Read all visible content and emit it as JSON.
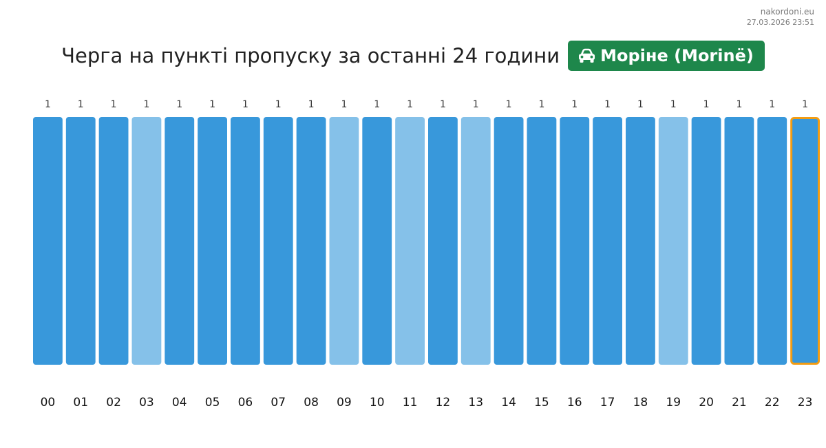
{
  "meta": {
    "site": "nakordoni.eu",
    "timestamp": "27.03.2026 23:51"
  },
  "header": {
    "title": "Черга на пункті пропуску за останні 24 години",
    "checkpoint": "Моріне (Morinë)",
    "checkpoint_icon": "car-icon",
    "badge_color": "#1e874b"
  },
  "chart_data": {
    "type": "bar",
    "categories": [
      "00",
      "01",
      "02",
      "03",
      "04",
      "05",
      "06",
      "07",
      "08",
      "09",
      "10",
      "11",
      "12",
      "13",
      "14",
      "15",
      "16",
      "17",
      "18",
      "19",
      "20",
      "21",
      "22",
      "23"
    ],
    "values": [
      1,
      1,
      1,
      1,
      1,
      1,
      1,
      1,
      1,
      1,
      1,
      1,
      1,
      1,
      1,
      1,
      1,
      1,
      1,
      1,
      1,
      1,
      1,
      1
    ],
    "light_bars": [
      "03",
      "09",
      "11",
      "13",
      "19"
    ],
    "highlighted": "23",
    "ylim": [
      0,
      1
    ],
    "colors": {
      "bar": "#3898db",
      "bar_light": "#85c1e9",
      "highlight_border": "#f39c12"
    }
  }
}
